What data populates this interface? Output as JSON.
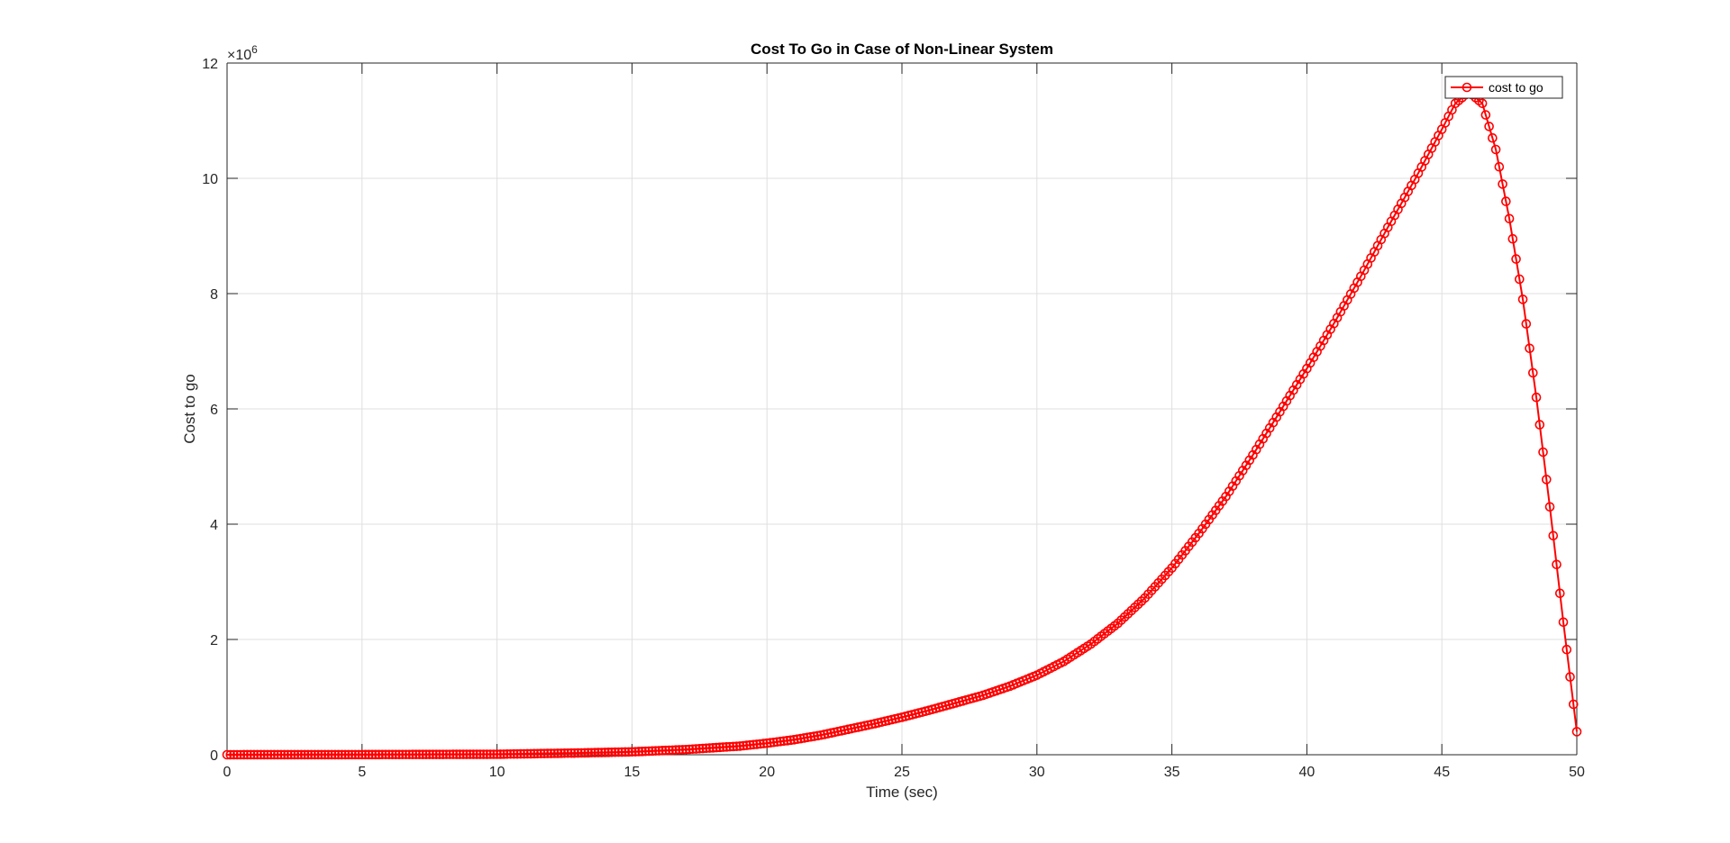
{
  "chart_data": {
    "type": "line",
    "title": "Cost To Go in Case of Non-Linear System",
    "xlabel": "Time (sec)",
    "ylabel": "Cost to go",
    "y_exponent_base": "×10",
    "y_exponent_power": "6",
    "xlim": [
      0,
      50
    ],
    "ylim": [
      0,
      12
    ],
    "x_ticks": [
      "0",
      "5",
      "10",
      "15",
      "20",
      "25",
      "30",
      "35",
      "40",
      "45",
      "50"
    ],
    "y_ticks": [
      "0",
      "2",
      "4",
      "6",
      "8",
      "10",
      "12"
    ],
    "grid": true,
    "legend_position": "top-right",
    "series": [
      {
        "name": "cost to go",
        "color": "#ff0000",
        "marker": "circle",
        "x": [
          0,
          5,
          10,
          13,
          15,
          17,
          18,
          19,
          20,
          21,
          22,
          23,
          24,
          25,
          26,
          27,
          28,
          29,
          30,
          31,
          32,
          33,
          34,
          35,
          36,
          37,
          38,
          39,
          40,
          41,
          42,
          43,
          44,
          45,
          45.5,
          46,
          46.5,
          47,
          47.5,
          48,
          48.5,
          49,
          49.5,
          50
        ],
        "y": [
          0,
          0.002,
          0.008,
          0.03,
          0.05,
          0.09,
          0.12,
          0.15,
          0.2,
          0.26,
          0.34,
          0.44,
          0.54,
          0.65,
          0.77,
          0.9,
          1.03,
          1.19,
          1.38,
          1.62,
          1.92,
          2.28,
          2.72,
          3.24,
          3.84,
          4.48,
          5.2,
          5.95,
          6.7,
          7.48,
          8.3,
          9.15,
          9.98,
          10.85,
          11.3,
          11.5,
          11.3,
          10.5,
          9.3,
          7.9,
          6.2,
          4.3,
          2.3,
          0.4
        ]
      }
    ]
  }
}
